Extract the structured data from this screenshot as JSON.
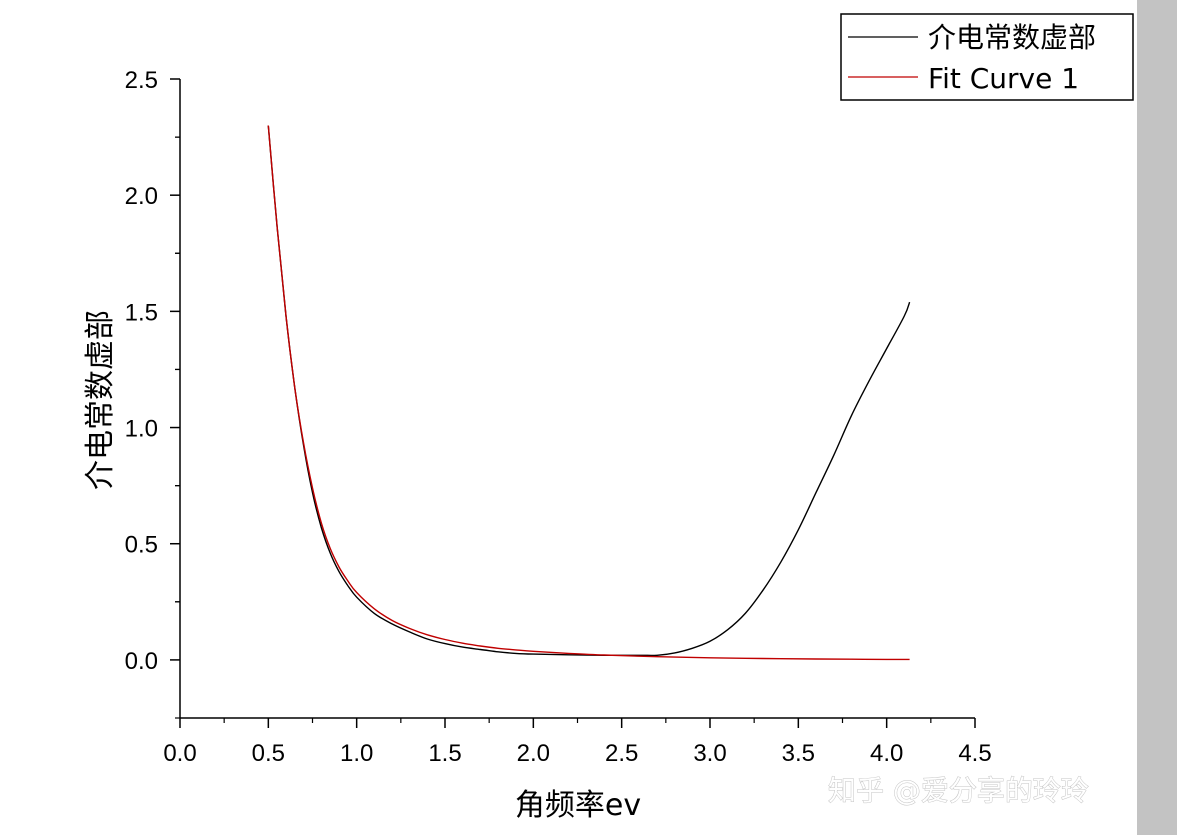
{
  "chart_data": {
    "type": "line",
    "xlabel": "角频率ev",
    "ylabel": "介电常数虚部",
    "xlim": [
      0,
      4.5
    ],
    "ylim": [
      -0.25,
      2.5
    ],
    "xticks": [
      "0.0",
      "0.5",
      "1.0",
      "1.5",
      "2.0",
      "2.5",
      "3.0",
      "3.5",
      "4.0",
      "4.5"
    ],
    "yticks": [
      "0.0",
      "0.5",
      "1.0",
      "1.5",
      "2.0",
      "2.5"
    ],
    "legend_position": "top-right",
    "series": [
      {
        "name": "介电常数虚部",
        "color": "#000000",
        "x": [
          0.5,
          0.55,
          0.6,
          0.65,
          0.7,
          0.75,
          0.8,
          0.85,
          0.9,
          0.95,
          1.0,
          1.1,
          1.2,
          1.3,
          1.4,
          1.5,
          1.6,
          1.7,
          1.8,
          1.9,
          2.0,
          2.2,
          2.4,
          2.6,
          2.7,
          2.8,
          2.9,
          3.0,
          3.1,
          3.2,
          3.3,
          3.4,
          3.5,
          3.6,
          3.7,
          3.8,
          3.9,
          4.0,
          4.1,
          4.13
        ],
        "y": [
          2.3,
          1.86,
          1.48,
          1.17,
          0.92,
          0.72,
          0.57,
          0.46,
          0.38,
          0.32,
          0.27,
          0.2,
          0.155,
          0.12,
          0.09,
          0.07,
          0.055,
          0.045,
          0.035,
          0.028,
          0.025,
          0.022,
          0.02,
          0.02,
          0.02,
          0.03,
          0.05,
          0.08,
          0.13,
          0.2,
          0.3,
          0.42,
          0.56,
          0.72,
          0.88,
          1.05,
          1.2,
          1.34,
          1.48,
          1.54
        ]
      },
      {
        "name": "Fit Curve 1",
        "color": "#c00000",
        "x": [
          0.5,
          0.55,
          0.6,
          0.65,
          0.7,
          0.75,
          0.8,
          0.85,
          0.9,
          0.95,
          1.0,
          1.1,
          1.2,
          1.3,
          1.4,
          1.5,
          1.6,
          1.7,
          1.8,
          1.9,
          2.0,
          2.2,
          2.4,
          2.6,
          2.8,
          3.0,
          3.2,
          3.4,
          3.6,
          3.8,
          4.0,
          4.13
        ],
        "y": [
          2.3,
          1.86,
          1.48,
          1.17,
          0.93,
          0.74,
          0.59,
          0.48,
          0.4,
          0.34,
          0.29,
          0.22,
          0.17,
          0.135,
          0.108,
          0.088,
          0.072,
          0.06,
          0.05,
          0.043,
          0.037,
          0.028,
          0.021,
          0.016,
          0.012,
          0.009,
          0.007,
          0.005,
          0.004,
          0.003,
          0.002,
          0.002
        ]
      }
    ]
  },
  "watermark": "知乎 @爱分享的玲玲"
}
